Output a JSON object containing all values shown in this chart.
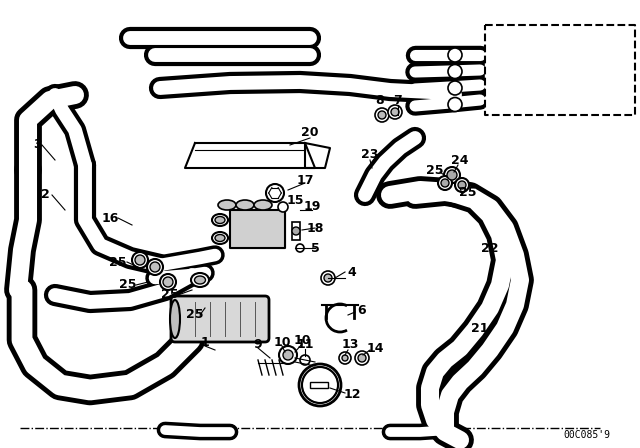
{
  "bg_color": "#ffffff",
  "line_color": "#000000",
  "diagram_code": "00C085'9",
  "tube_lw": 10,
  "hose_lw": 16
}
